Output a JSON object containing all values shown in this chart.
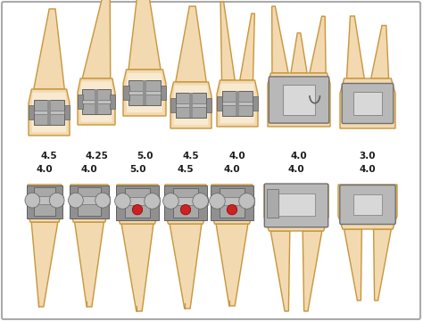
{
  "background_color": "#ffffff",
  "tooth_fill": "#f2d9b0",
  "tooth_fill2": "#eddcbb",
  "tooth_edge": "#c8963c",
  "tooth_inner": "#f8ead0",
  "bracket_gray": "#909090",
  "bracket_light": "#c0c0c0",
  "bracket_dark": "#606060",
  "bracket_mid": "#a8a8a8",
  "crown_silver": "#b8b8b8",
  "crown_light": "#d8d8d8",
  "text_color": "#1a1a1a",
  "red_dot": "#cc2222",
  "top_row_labels": [
    "4.5",
    "4.25",
    "5.0",
    "4.5",
    "4.0",
    "4.0",
    "3.0"
  ],
  "bottom_row_labels": [
    "4.0",
    "4.0",
    "5.0",
    "4.5",
    "4.0",
    "4.0",
    "4.0"
  ],
  "figsize": [
    4.74,
    3.6
  ],
  "dpi": 100
}
